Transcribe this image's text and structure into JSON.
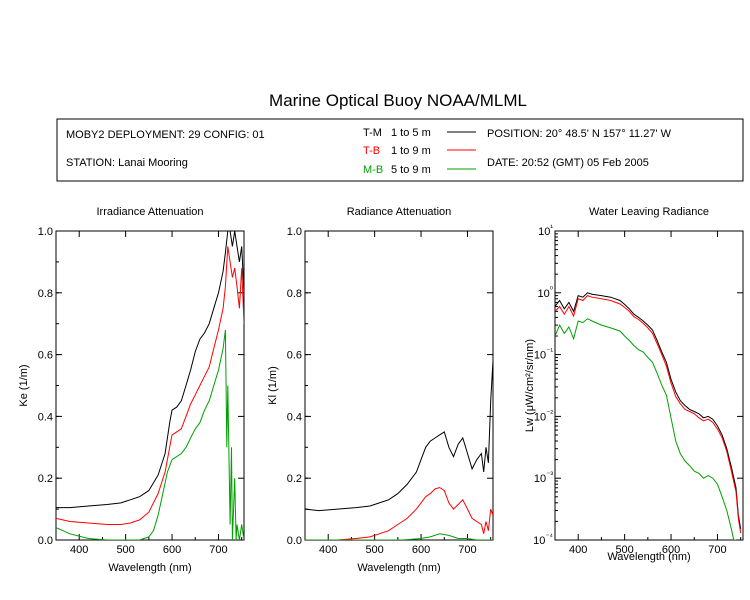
{
  "header": {
    "title": "Marine Optical Buoy NOAA/MLML",
    "deployment": "MOBY2 DEPLOYMENT: 29 CONFIG: 01",
    "station": "STATION: Lanai Mooring",
    "position": "POSITION: 20° 48.5' N   157° 11.27' W",
    "date": "DATE: 20:52 (GMT) 05 Feb 2005",
    "legend": [
      {
        "code": "T-M",
        "range": "1 to 5  m",
        "color": "#000000"
      },
      {
        "code": "T-B",
        "range": "1 to 9  m",
        "color": "#ff0000"
      },
      {
        "code": "M-B",
        "range": "5 to 9  m",
        "color": "#00a000"
      }
    ]
  },
  "chart_data": [
    {
      "type": "line",
      "title": "Irradiance Attenuation",
      "xlabel": "Wavelength (nm)",
      "ylabel": "Ke  (1/m)",
      "xlim": [
        350,
        755
      ],
      "ylim": [
        0,
        1.0
      ],
      "xticks": [
        "400",
        "500",
        "600",
        "700"
      ],
      "yticks": [
        "0.0",
        "0.2",
        "0.4",
        "0.6",
        "0.8",
        "1.0"
      ],
      "series": [
        {
          "name": "T-M",
          "color": "#000000",
          "x": [
            350,
            380,
            420,
            460,
            490,
            510,
            530,
            550,
            570,
            585,
            595,
            600,
            610,
            620,
            630,
            640,
            650,
            660,
            670,
            680,
            690,
            700,
            710,
            715,
            720,
            725,
            730,
            735,
            740,
            745,
            750,
            755
          ],
          "y": [
            0.105,
            0.105,
            0.11,
            0.115,
            0.12,
            0.13,
            0.14,
            0.16,
            0.21,
            0.28,
            0.38,
            0.42,
            0.43,
            0.45,
            0.5,
            0.55,
            0.61,
            0.65,
            0.67,
            0.7,
            0.75,
            0.8,
            0.87,
            0.93,
            1.0,
            1.0,
            0.95,
            1.0,
            0.95,
            0.9,
            0.95,
            0.8
          ]
        },
        {
          "name": "T-B",
          "color": "#ff0000",
          "x": [
            350,
            380,
            420,
            460,
            490,
            510,
            530,
            550,
            570,
            585,
            595,
            600,
            610,
            620,
            630,
            640,
            650,
            660,
            670,
            680,
            690,
            700,
            710,
            715,
            720,
            725,
            730,
            735,
            740,
            745,
            750,
            755
          ],
          "y": [
            0.07,
            0.06,
            0.055,
            0.05,
            0.05,
            0.055,
            0.065,
            0.09,
            0.15,
            0.22,
            0.3,
            0.34,
            0.35,
            0.36,
            0.4,
            0.44,
            0.47,
            0.5,
            0.53,
            0.56,
            0.62,
            0.68,
            0.75,
            0.82,
            0.95,
            0.9,
            0.85,
            0.88,
            0.82,
            0.75,
            0.88,
            0.7
          ]
        },
        {
          "name": "M-B",
          "color": "#00a000",
          "x": [
            350,
            380,
            420,
            460,
            500,
            530,
            550,
            560,
            570,
            580,
            590,
            600,
            610,
            620,
            630,
            640,
            650,
            660,
            670,
            680,
            690,
            700,
            710,
            715,
            718,
            720,
            725,
            728,
            730,
            735,
            738,
            740,
            745,
            750,
            755
          ],
          "y": [
            0.04,
            0.02,
            0.005,
            0.0,
            0.0,
            0.0,
            0.01,
            0.03,
            0.08,
            0.15,
            0.22,
            0.26,
            0.27,
            0.28,
            0.3,
            0.33,
            0.36,
            0.38,
            0.42,
            0.45,
            0.5,
            0.55,
            0.62,
            0.68,
            0.3,
            0.5,
            0.05,
            0.3,
            0.0,
            0.2,
            0.0,
            0.05,
            0.0,
            0.05,
            0.0
          ]
        }
      ]
    },
    {
      "type": "line",
      "title": "Radiance Attenuation",
      "xlabel": "Wavelength (nm)",
      "ylabel": "Kl  (1/m)",
      "xlim": [
        350,
        755
      ],
      "ylim": [
        0,
        1.0
      ],
      "xticks": [
        "400",
        "500",
        "600",
        "700"
      ],
      "yticks": [
        "0.0",
        "0.2",
        "0.4",
        "0.6",
        "0.8",
        "1.0"
      ],
      "series": [
        {
          "name": "T-M",
          "color": "#000000",
          "x": [
            350,
            380,
            420,
            460,
            490,
            510,
            530,
            550,
            570,
            590,
            600,
            610,
            620,
            630,
            640,
            650,
            660,
            670,
            680,
            690,
            700,
            710,
            720,
            730,
            735,
            740,
            745,
            750,
            755
          ],
          "y": [
            0.1,
            0.095,
            0.1,
            0.105,
            0.11,
            0.12,
            0.13,
            0.15,
            0.18,
            0.22,
            0.26,
            0.3,
            0.32,
            0.33,
            0.34,
            0.35,
            0.3,
            0.27,
            0.31,
            0.33,
            0.28,
            0.23,
            0.26,
            0.28,
            0.22,
            0.3,
            0.25,
            0.45,
            0.58
          ]
        },
        {
          "name": "T-B",
          "color": "#ff0000",
          "x": [
            350,
            380,
            420,
            460,
            490,
            510,
            530,
            550,
            570,
            590,
            600,
            610,
            620,
            630,
            640,
            650,
            660,
            670,
            680,
            690,
            700,
            710,
            720,
            730,
            735,
            740,
            745,
            750,
            755
          ],
          "y": [
            0.0,
            0.0,
            0.0,
            0.005,
            0.01,
            0.02,
            0.03,
            0.05,
            0.07,
            0.1,
            0.12,
            0.14,
            0.15,
            0.165,
            0.17,
            0.16,
            0.12,
            0.1,
            0.115,
            0.13,
            0.1,
            0.07,
            0.06,
            0.05,
            0.02,
            0.06,
            0.03,
            0.1,
            0.08
          ]
        },
        {
          "name": "M-B",
          "color": "#00a000",
          "x": [
            350,
            420,
            560,
            600,
            620,
            640,
            660,
            680,
            700,
            720,
            740,
            755
          ],
          "y": [
            0.0,
            0.0,
            0.0,
            0.005,
            0.01,
            0.02,
            0.015,
            0.005,
            0.005,
            0.0,
            0.0,
            0.0
          ]
        }
      ]
    },
    {
      "type": "line",
      "title": "Water Leaving Radiance",
      "xlabel": "Wavelength (nm)",
      "ylabel": "Lw  (μW/cm²/sr/nm)",
      "yscale": "log",
      "xlim": [
        350,
        755
      ],
      "ylim": [
        0.0001,
        10
      ],
      "xticks": [
        "400",
        "500",
        "600",
        "700"
      ],
      "yticks": [
        "10⁻⁴",
        "10⁻³",
        "10⁻²",
        "10⁻¹",
        "10⁰",
        "10¹"
      ],
      "series": [
        {
          "name": "T-M",
          "color": "#000000",
          "x": [
            350,
            360,
            370,
            380,
            390,
            400,
            410,
            420,
            430,
            450,
            470,
            490,
            500,
            510,
            520,
            530,
            540,
            550,
            560,
            570,
            580,
            590,
            600,
            610,
            620,
            630,
            640,
            650,
            660,
            670,
            680,
            690,
            700,
            710,
            720,
            730,
            740,
            745,
            750
          ],
          "y": [
            0.6,
            0.75,
            0.55,
            0.7,
            0.5,
            0.9,
            0.85,
            1.0,
            0.95,
            0.9,
            0.85,
            0.75,
            0.65,
            0.55,
            0.45,
            0.4,
            0.35,
            0.3,
            0.25,
            0.17,
            0.11,
            0.075,
            0.04,
            0.025,
            0.018,
            0.015,
            0.013,
            0.012,
            0.011,
            0.0095,
            0.01,
            0.009,
            0.007,
            0.005,
            0.003,
            0.0015,
            0.0007,
            0.00025,
            0.00015
          ]
        },
        {
          "name": "T-B",
          "color": "#ff0000",
          "x": [
            350,
            360,
            370,
            380,
            390,
            400,
            410,
            420,
            430,
            450,
            470,
            490,
            500,
            510,
            520,
            530,
            540,
            550,
            560,
            570,
            580,
            590,
            600,
            610,
            620,
            630,
            640,
            650,
            660,
            670,
            680,
            690,
            700,
            710,
            720,
            730,
            740,
            745,
            750
          ],
          "y": [
            0.5,
            0.6,
            0.45,
            0.6,
            0.42,
            0.8,
            0.75,
            0.9,
            0.85,
            0.8,
            0.75,
            0.66,
            0.58,
            0.5,
            0.41,
            0.37,
            0.32,
            0.27,
            0.22,
            0.15,
            0.1,
            0.065,
            0.035,
            0.021,
            0.016,
            0.013,
            0.012,
            0.011,
            0.0095,
            0.0085,
            0.009,
            0.008,
            0.0062,
            0.0045,
            0.0027,
            0.0013,
            0.0006,
            0.00022,
            0.00013
          ]
        },
        {
          "name": "M-B",
          "color": "#00a000",
          "x": [
            350,
            360,
            370,
            380,
            390,
            400,
            410,
            420,
            430,
            450,
            470,
            490,
            500,
            510,
            520,
            530,
            540,
            550,
            560,
            570,
            580,
            590,
            600,
            610,
            620,
            630,
            640,
            650,
            660,
            670,
            680,
            690,
            700,
            710,
            720,
            730,
            735,
            740
          ],
          "y": [
            0.2,
            0.3,
            0.22,
            0.28,
            0.18,
            0.35,
            0.33,
            0.38,
            0.35,
            0.3,
            0.27,
            0.24,
            0.2,
            0.17,
            0.14,
            0.12,
            0.11,
            0.09,
            0.075,
            0.05,
            0.032,
            0.022,
            0.0095,
            0.004,
            0.0025,
            0.0019,
            0.0016,
            0.0013,
            0.0012,
            0.001,
            0.0011,
            0.001,
            0.0008,
            0.0005,
            0.0003,
            0.00015,
            0.0001,
            0.0001
          ]
        }
      ]
    }
  ]
}
